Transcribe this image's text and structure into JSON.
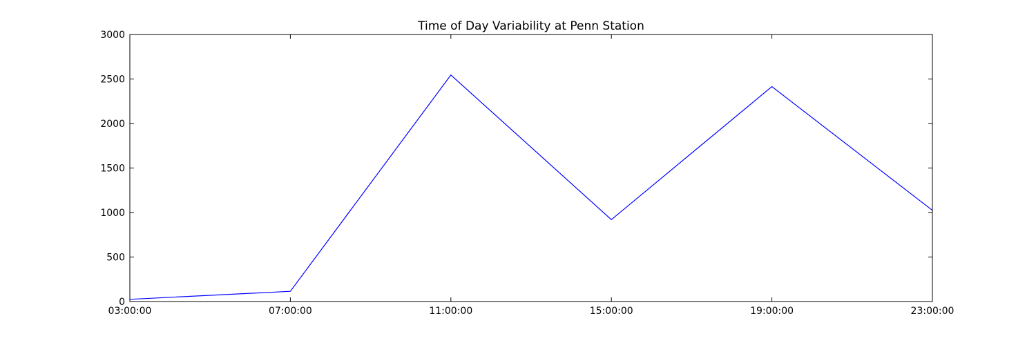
{
  "chart_data": {
    "type": "line",
    "title": "Time of Day Variability at Penn Station",
    "xlabel": "",
    "ylabel": "",
    "x": [
      "03:00:00",
      "07:00:00",
      "11:00:00",
      "15:00:00",
      "19:00:00",
      "23:00:00"
    ],
    "series": [
      {
        "values": [
          25,
          115,
          2545,
          920,
          2415,
          1025
        ],
        "color": "#0000ff"
      }
    ],
    "ylim": [
      0,
      3000
    ],
    "yticks": [
      0,
      500,
      1000,
      1500,
      2000,
      2500,
      3000
    ],
    "grid": false,
    "legend": "none"
  }
}
